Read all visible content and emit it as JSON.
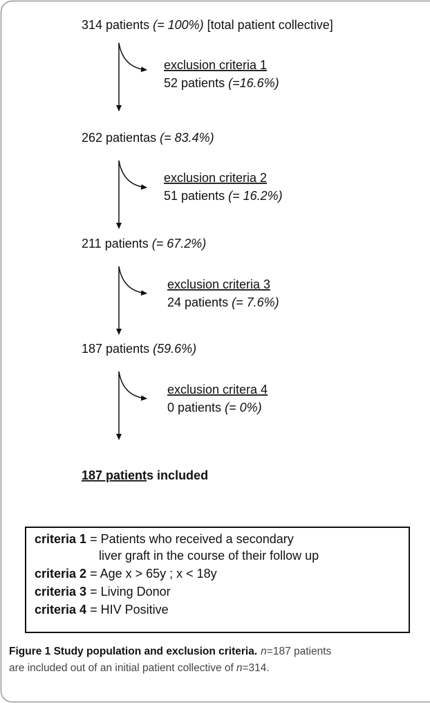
{
  "flow": {
    "steps": [
      {
        "count": "314 patients",
        "pct": "(= 100%)",
        "note": "[total patient collective]"
      },
      {
        "count": "262 patientas",
        "pct": "(= 83.4%)"
      },
      {
        "count": "211 patients",
        "pct": "(= 67.2%)"
      },
      {
        "count": "187 patients",
        "pct": "(59.6%)"
      }
    ],
    "exclusions": [
      {
        "label": "exclusion criteria 1",
        "count": "52 patients",
        "pct": "(=16.6%)"
      },
      {
        "label": "exclusion criteria 2",
        "count": "51 patients",
        "pct": "(= 16.2%)"
      },
      {
        "label": "exclusion criteria 3",
        "count": "24 patients",
        "pct": "(= 7.6%)"
      },
      {
        "label": "exclusion critera 4",
        "count": "0 patients",
        "pct": "(= 0%)"
      }
    ],
    "result": {
      "underlined": "187 patient",
      "rest": "s included"
    }
  },
  "legend": [
    {
      "term": "criteria 1",
      "definition": [
        "= Patients who received a secondary",
        "liver graft in the course of their follow up"
      ]
    },
    {
      "term": "criteria 2",
      "definition": [
        "= Age x > 65y ; x < 18y"
      ]
    },
    {
      "term": "criteria 3",
      "definition": [
        "= Living Donor"
      ]
    },
    {
      "term": "criteria 4",
      "definition": [
        "= HIV Positive"
      ]
    }
  ],
  "caption": {
    "title": "Figure 1 Study population and exclusion criteria.",
    "lines": [
      [
        "n",
        "=187 patients"
      ],
      [
        "are included out of an initial patient collective of",
        "n",
        "=314."
      ]
    ]
  }
}
